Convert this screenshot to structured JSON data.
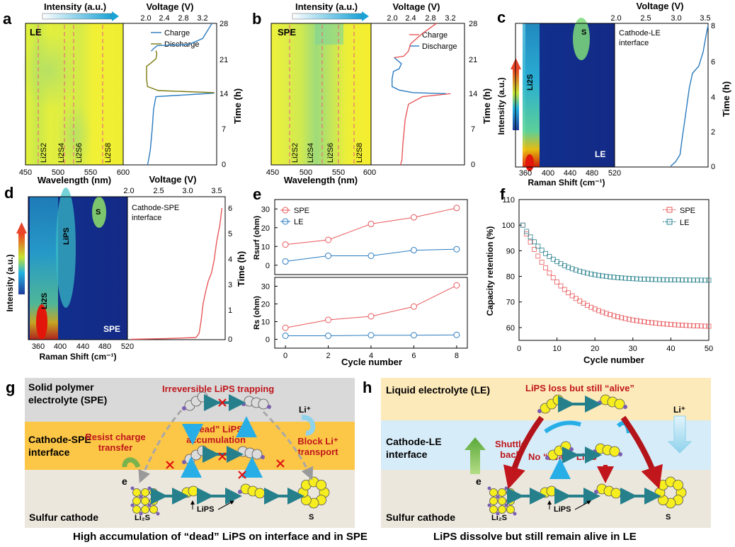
{
  "panels": {
    "a": {
      "letter": "a",
      "corner": "LE",
      "top_axis_label": "Intensity (a.u.)",
      "voltage_label": "Voltage (V)",
      "wavelength_label": "Wavelength (nm)",
      "time_label": "Time (h)",
      "species": [
        "Li2S2",
        "Li2S4",
        "Li2S6",
        "Li2S8"
      ],
      "legend": [
        "Charge",
        "Discharge"
      ]
    },
    "b": {
      "letter": "b",
      "corner": "SPE",
      "top_axis_label": "Intensity (a.u.)",
      "voltage_label": "Voltage (V)",
      "wavelength_label": "Wavelength (nm)",
      "time_label": "Time (h)",
      "species": [
        "Li2S2",
        "Li2S4",
        "Li2S6",
        "Li2S8"
      ],
      "legend": [
        "Charge",
        "Discharge"
      ]
    },
    "c": {
      "letter": "c",
      "corner": "LE",
      "interface": "Cathode-LE interface",
      "intensity_label": "Intensity (a.u.)",
      "raman_label": "Raman Shift (cm⁻¹)",
      "voltage_label": "Voltage (V)",
      "time_label": "Time (h)",
      "peaks": [
        "S",
        "Li2S"
      ]
    },
    "d": {
      "letter": "d",
      "corner": "SPE",
      "interface": "Cathode-SPE interface",
      "intensity_label": "Intensity (a.u.)",
      "raman_label": "Raman Shift (cm⁻¹)",
      "voltage_label": "Voltage (V)",
      "time_label": "Time (h)",
      "peaks": [
        "S",
        "LiPS",
        "Li2S"
      ]
    },
    "e": {
      "letter": "e",
      "ylabel_top": "Rsurf (ohm)",
      "ylabel_bottom": "Rs (ohm)",
      "xlabel": "Cycle number"
    },
    "f": {
      "letter": "f",
      "ylabel": "Capacity retention (%)",
      "xlabel": "Cycle number"
    }
  },
  "schematic_g": {
    "letter": "g",
    "layers": [
      "Solid polymer electrolyte (SPE)",
      "Cathode-SPE interface",
      "Sulfur cathode"
    ],
    "title": "Irreversible LiPS trapping",
    "dead": "“dead” LiPS accumulation",
    "resist": "Resist charge transfer",
    "block": "Block Li⁺ transport",
    "li": "Li⁺",
    "e": "e",
    "species": [
      "Li₂S",
      "LiPS",
      "S"
    ],
    "caption": "High accumulation of “dead” LiPS on interface and in SPE"
  },
  "schematic_h": {
    "letter": "h",
    "layers": [
      "Liquid electrolyte (LE)",
      "Cathode-LE interface",
      "Sulfur cathode"
    ],
    "title": "LiPS loss but still “alive”",
    "nodead": "No “dead” LiPS",
    "shuttle": "Shuttle back",
    "li": "Li⁺",
    "e": "e",
    "species": [
      "Li₂S",
      "LiPS",
      "S"
    ],
    "caption": "LiPS dissolve but still remain alive in LE"
  },
  "colors": {
    "red": "#e8575a",
    "blue": "#2a7bbf",
    "olive": "#7a7a10",
    "teal": "#26808c",
    "darkred": "#c0161c"
  },
  "chart_data": [
    {
      "id": "a-voltage",
      "type": "line",
      "xlabel": "Voltage (V)",
      "ylabel": "Time (h)",
      "xlim": [
        1.6,
        3.6
      ],
      "ylim": [
        0,
        28
      ],
      "series": [
        {
          "name": "Charge",
          "points": [
            [
              2.12,
              0
            ],
            [
              2.14,
              0.8
            ],
            [
              2.18,
              3
            ],
            [
              2.22,
              7
            ],
            [
              2.25,
              11
            ],
            [
              2.3,
              13.5
            ],
            [
              3.2,
              14
            ],
            [
              3.55,
              14.2
            ]
          ]
        },
        {
          "name": "Charge",
          "points": [
            [
              2.2,
              22.5
            ],
            [
              2.25,
              23
            ],
            [
              2.33,
              23.6
            ],
            [
              3.0,
              23.8
            ],
            [
              3.3,
              25
            ],
            [
              3.5,
              28
            ]
          ]
        },
        {
          "name": "Discharge",
          "points": [
            [
              3.55,
              14.3
            ],
            [
              2.35,
              14.7
            ],
            [
              2.12,
              15.5
            ],
            [
              2.1,
              17
            ],
            [
              2.1,
              19.5
            ],
            [
              2.2,
              20.2
            ],
            [
              2.3,
              21
            ],
            [
              2.32,
              22
            ],
            [
              2.3,
              22.6
            ]
          ]
        }
      ]
    },
    {
      "id": "b-voltage",
      "type": "line",
      "xlabel": "Voltage (V)",
      "ylabel": "Time (h)",
      "xlim": [
        1.6,
        3.6
      ],
      "ylim": [
        0,
        28
      ],
      "series": [
        {
          "name": "Charge",
          "points": [
            [
              2.23,
              0
            ],
            [
              2.26,
              1
            ],
            [
              2.28,
              4
            ],
            [
              2.33,
              9
            ],
            [
              2.4,
              12
            ],
            [
              2.7,
              13.5
            ],
            [
              3.3,
              14.1
            ]
          ]
        },
        {
          "name": "Charge",
          "points": [
            [
              2.09,
              21.2
            ],
            [
              2.3,
              21.5
            ],
            [
              2.4,
              22.5
            ],
            [
              2.45,
              24
            ],
            [
              2.7,
              26
            ],
            [
              3.0,
              28
            ]
          ]
        },
        {
          "name": "Discharge",
          "points": [
            [
              3.2,
              14.1
            ],
            [
              2.5,
              14.3
            ],
            [
              2.2,
              14.8
            ],
            [
              2.05,
              15.5
            ],
            [
              2.05,
              17
            ],
            [
              2.08,
              18.5
            ],
            [
              2.2,
              19
            ],
            [
              2.25,
              20
            ],
            [
              2.1,
              21.2
            ]
          ]
        }
      ]
    },
    {
      "id": "c-voltage",
      "type": "line",
      "xlabel": "Voltage (V)",
      "ylabel": "Time (h)",
      "xlim": [
        2.0,
        3.5
      ],
      "ylim": [
        0,
        8
      ],
      "series": [
        {
          "name": "Voltage",
          "points": [
            [
              2.9,
              0.05
            ],
            [
              2.98,
              0.3
            ],
            [
              3.05,
              0.7
            ],
            [
              3.08,
              1.5
            ],
            [
              3.12,
              2.5
            ],
            [
              3.16,
              3.5
            ],
            [
              3.2,
              4.5
            ],
            [
              3.25,
              5.3
            ],
            [
              3.35,
              5.7
            ],
            [
              3.42,
              6.5
            ],
            [
              3.47,
              7.5
            ],
            [
              3.5,
              8
            ]
          ]
        }
      ]
    },
    {
      "id": "d-voltage",
      "type": "line",
      "xlabel": "Voltage (V)",
      "ylabel": "Time (h)",
      "xlim": [
        2.0,
        3.5
      ],
      "ylim": [
        0,
        6.5
      ],
      "series": [
        {
          "name": "Voltage",
          "points": [
            [
              2.05,
              0.02
            ],
            [
              2.6,
              0.05
            ],
            [
              3.05,
              0.1
            ],
            [
              3.1,
              0.3
            ],
            [
              3.13,
              0.9
            ],
            [
              3.16,
              1.7
            ],
            [
              3.2,
              2.3
            ],
            [
              3.24,
              2.8
            ],
            [
              3.29,
              3.2
            ],
            [
              3.33,
              3.8
            ],
            [
              3.37,
              4.7
            ],
            [
              3.42,
              5.5
            ],
            [
              3.45,
              6.3
            ]
          ]
        }
      ]
    },
    {
      "id": "e-top",
      "type": "line",
      "xlabel": "Cycle number",
      "ylabel": "Rsurf (ohm)",
      "xlim": [
        -0.5,
        8.5
      ],
      "ylim": [
        -5,
        35
      ],
      "series": [
        {
          "name": "SPE",
          "x": [
            0,
            2,
            4,
            6,
            8
          ],
          "values": [
            11,
            13.5,
            22,
            25.5,
            30.5
          ]
        },
        {
          "name": "LE",
          "x": [
            0,
            2,
            4,
            6,
            8
          ],
          "values": [
            2,
            5,
            5,
            8,
            8.5
          ]
        }
      ]
    },
    {
      "id": "e-bottom",
      "type": "line",
      "xlabel": "Cycle number",
      "ylabel": "Rs (ohm)",
      "xlim": [
        -0.5,
        8.5
      ],
      "ylim": [
        -5,
        35
      ],
      "series": [
        {
          "name": "SPE",
          "x": [
            0,
            2,
            4,
            6,
            8
          ],
          "values": [
            6.5,
            11,
            13,
            18.5,
            30.5
          ]
        },
        {
          "name": "LE",
          "x": [
            0,
            2,
            4,
            6,
            8
          ],
          "values": [
            2,
            2,
            2.3,
            2.3,
            2.5
          ]
        }
      ]
    },
    {
      "id": "f",
      "type": "scatter",
      "xlabel": "Cycle number",
      "ylabel": "Capacity retention (%)",
      "xlim": [
        0,
        50
      ],
      "ylim": [
        55,
        110
      ],
      "series": [
        {
          "name": "SPE",
          "end": 60.5,
          "k": 0.09
        },
        {
          "name": "LE",
          "end": 78.5,
          "k": 0.12
        }
      ]
    }
  ]
}
